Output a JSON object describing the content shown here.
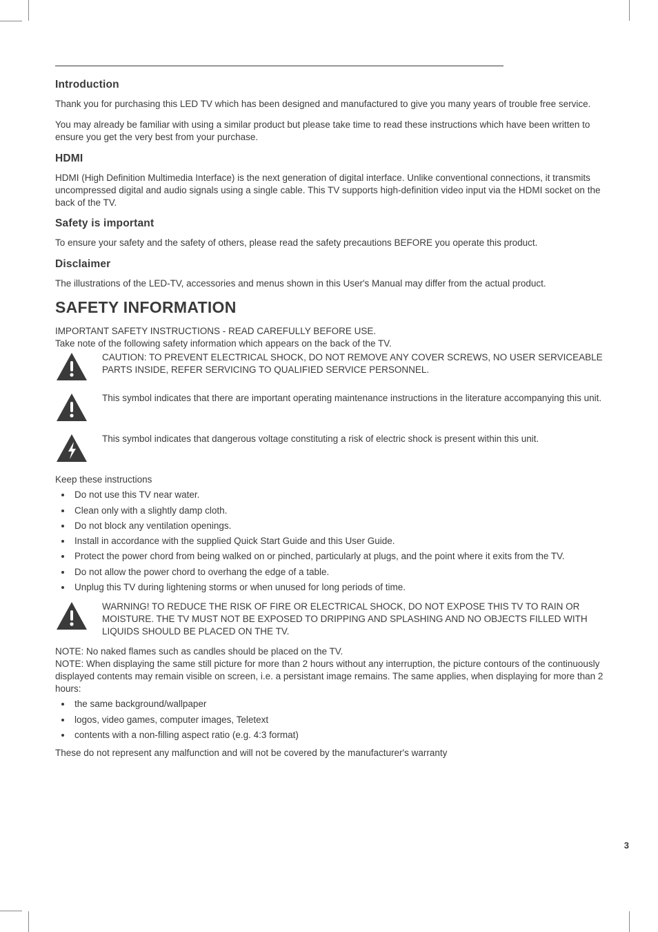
{
  "page_number": "3",
  "colors": {
    "text": "#3a3a3a",
    "bg": "#ffffff",
    "icon_fill": "#3a3a3a"
  },
  "fonts": {
    "body_size_pt": 10,
    "h2_size_pt": 11.5,
    "h1_size_pt": 17,
    "h2_weight": 900,
    "h1_weight": 900
  },
  "sections": {
    "introduction": {
      "heading": "Introduction",
      "p1": "Thank you for purchasing this LED TV which has been designed and manufactured to give you many years of trouble free service.",
      "p2": "You may already be familiar with using a similar product but please take time to read these instructions which have been written to ensure you get the very best from your purchase."
    },
    "hdmi": {
      "heading": "HDMI",
      "p1": "HDMI (High Definition Multimedia Interface) is the next generation of digital interface. Unlike conventional connections, it transmits uncompressed digital and audio signals using a single cable. This TV supports high-definition video input via the HDMI socket on the back of the TV."
    },
    "safety_important": {
      "heading": "Safety is important",
      "p1": "To ensure your safety and the safety of others, please read the safety precautions BEFORE you operate this product."
    },
    "disclaimer": {
      "heading": "Disclaimer",
      "p1": "The illustrations of the LED-TV, accessories and menus shown in this User's Manual may differ from the actual product."
    },
    "safety_info": {
      "heading": "SAFETY INFORMATION",
      "intro1": "IMPORTANT SAFETY INSTRUCTIONS - READ CAREFULLY BEFORE USE.",
      "intro2": "Take note of the following safety information which appears on the back of the TV.",
      "caution": "CAUTION: TO PREVENT ELECTRICAL SHOCK, DO NOT REMOVE ANY COVER SCREWS, NO USER SERVICEABLE PARTS INSIDE, REFER SERVICING TO QUALIFIED SERVICE PERSONNEL.",
      "symbol_maintenance": "This symbol indicates that there are important operating maintenance instructions in the literature accompanying this unit.",
      "symbol_voltage": "This symbol indicates that dangerous voltage constituting a risk of electric shock is present within this unit.",
      "keep": "Keep these instructions",
      "bullets1": [
        "Do not use this TV near water.",
        "Clean only with a slightly damp cloth.",
        "Do not block any ventilation openings.",
        "Install in accordance with the supplied Quick Start Guide and this User Guide.",
        "Protect the power chord from being walked on or pinched, particularly at plugs, and the point where it exits from the TV.",
        "Do not allow the power chord to overhang the edge of a table.",
        "Unplug this TV during lightening storms or when unused for long periods of time."
      ],
      "warning": "WARNING! TO REDUCE THE RISK OF FIRE OR ELECTRICAL SHOCK, DO NOT EXPOSE THIS TV TO RAIN OR MOISTURE. THE TV MUST NOT BE EXPOSED TO DRIPPING AND SPLASHING AND NO OBJECTS FILLED WITH LIQUIDS SHOULD BE PLACED ON THE TV.",
      "note1": "NOTE: No naked flames such as candles should be placed on the TV.",
      "note2": "NOTE: When displaying the same still picture for more than 2 hours without any interruption, the picture contours of the continuously displayed contents may remain visible on screen, i.e. a persistant image remains. The same applies, when displaying for more than 2 hours:",
      "bullets2": [
        "the same background/wallpaper",
        "logos, video games, computer images, Teletext",
        "contents with a non-filling aspect ratio (e.g. 4:3 format)"
      ],
      "closing": "These do not represent any malfunction and will not be covered by the manufacturer's warranty"
    }
  }
}
